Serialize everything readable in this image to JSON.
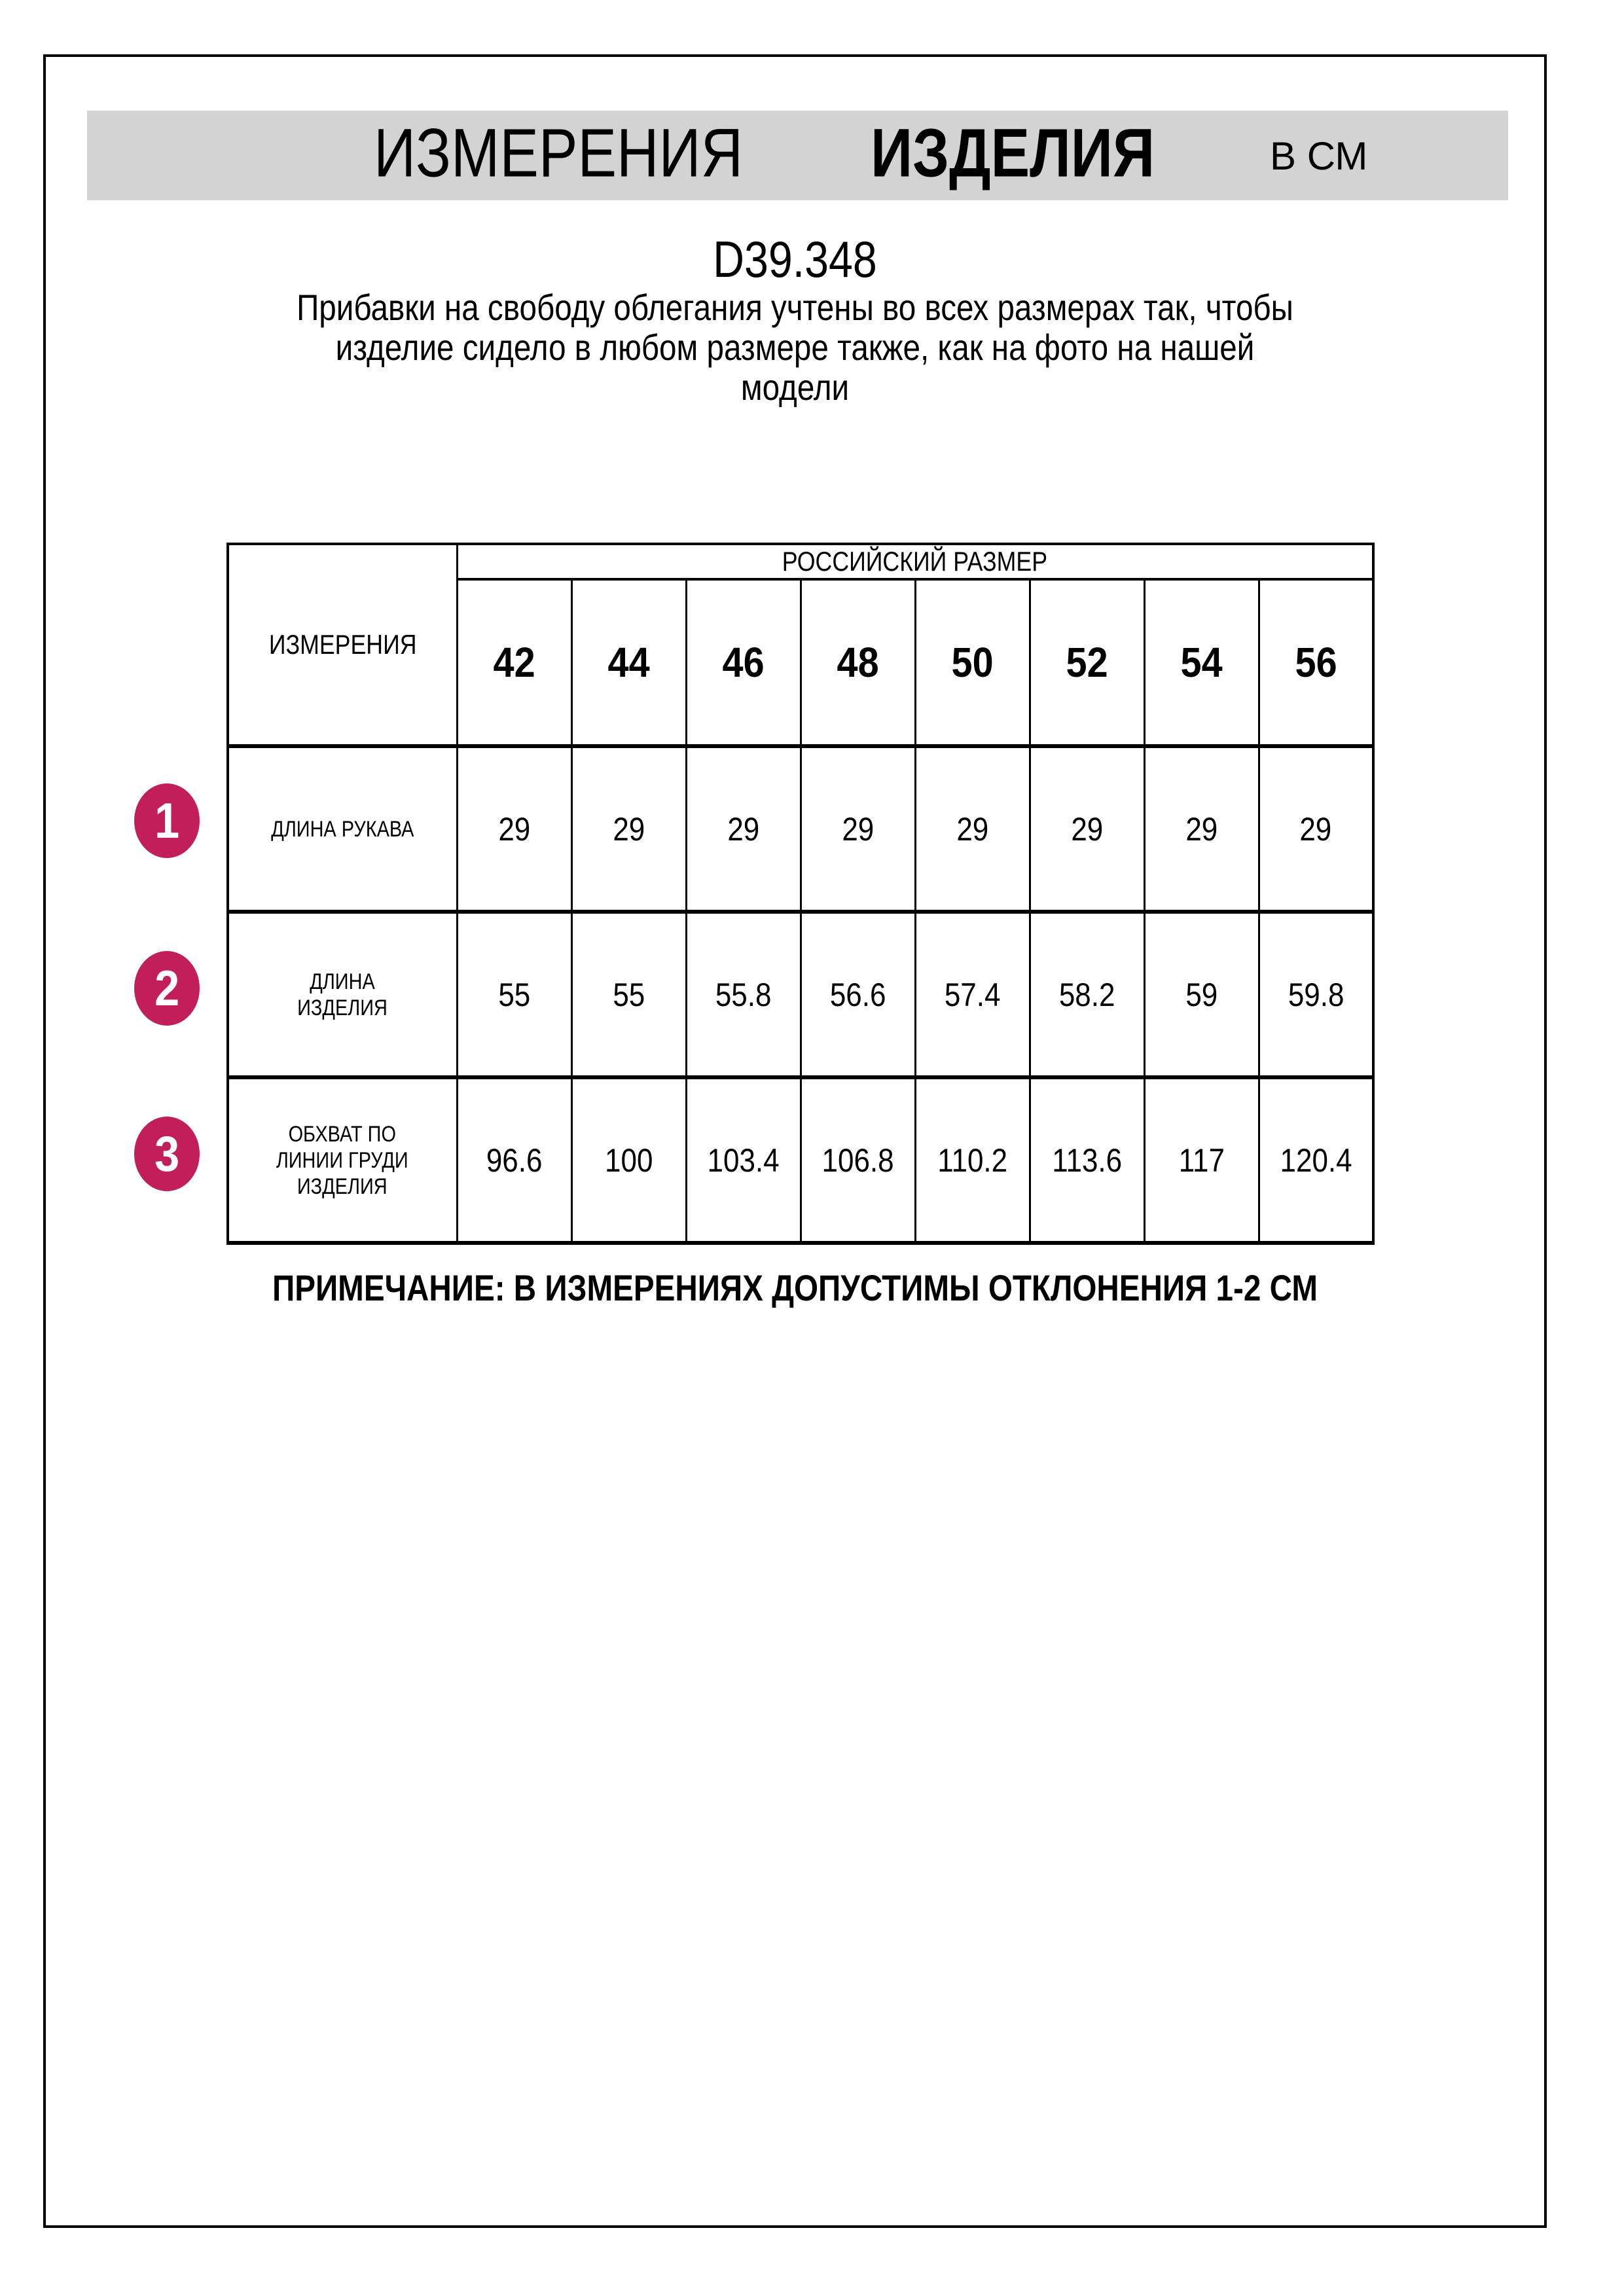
{
  "title": {
    "word_measurements": "ИЗМЕРЕНИЯ",
    "word_product": "ИЗДЕЛИЯ",
    "unit": "В СМ"
  },
  "product_code": "D39.348",
  "description": "Прибавки на свободу облегания учтены во всех размерах так, чтобы\nизделие сидело в любом размере также, как на фото на нашей\nмодели",
  "size_table": {
    "measurements_header": "ИЗМЕРЕНИЯ",
    "size_system_header": "РОССИЙСКИЙ РАЗМЕР",
    "sizes": [
      "42",
      "44",
      "46",
      "48",
      "50",
      "52",
      "54",
      "56"
    ],
    "rows": [
      {
        "num": "1",
        "label": "ДЛИНА РУКАВА",
        "values": [
          "29",
          "29",
          "29",
          "29",
          "29",
          "29",
          "29",
          "29"
        ]
      },
      {
        "num": "2",
        "label": "ДЛИНА\nИЗДЕЛИЯ",
        "values": [
          "55",
          "55",
          "55.8",
          "56.6",
          "57.4",
          "58.2",
          "59",
          "59.8"
        ]
      },
      {
        "num": "3",
        "label": "ОБХВАТ ПО\nЛИНИИ ГРУДИ\nИЗДЕЛИЯ",
        "values": [
          "96.6",
          "100",
          "103.4",
          "106.8",
          "110.2",
          "113.6",
          "117",
          "120.4"
        ]
      }
    ]
  },
  "note": "ПРИМЕЧАНИЕ: В ИЗМЕРЕНИЯХ ДОПУСТИМЫ ОТКЛОНЕНИЯ 1-2 СМ",
  "colors": {
    "badge": "#c11e5a",
    "title_bar_bg": "#d3d3d3",
    "border": "#000000",
    "page_bg": "#ffffff"
  }
}
